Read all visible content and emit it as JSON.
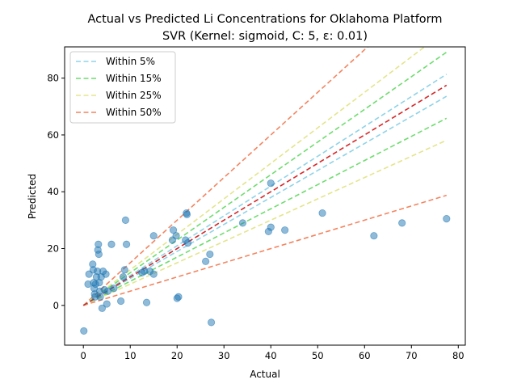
{
  "chart_data": {
    "type": "scatter",
    "title": "Actual vs Predicted Li Concentrations for Oklahoma Platform",
    "subtitle": "SVR (Kernel: sigmoid, C: 5, ε: 0.01)",
    "xlabel": "Actual",
    "ylabel": "Predicted",
    "xlim": [
      -4,
      81.5
    ],
    "ylim": [
      -14,
      91
    ],
    "xticks": [
      0,
      10,
      20,
      30,
      40,
      50,
      60,
      70,
      80
    ],
    "yticks": [
      0,
      20,
      40,
      60,
      80
    ],
    "xtick_labels": [
      "0",
      "10",
      "20",
      "30",
      "40",
      "50",
      "60",
      "70",
      "80"
    ],
    "ytick_labels": [
      "0",
      "20",
      "40",
      "60",
      "80"
    ],
    "grid": false,
    "legend_position": "top-left",
    "points_color": "#1f77b4",
    "identity_line": {
      "color": "#d62728",
      "x": [
        0,
        77.5
      ]
    },
    "bands": [
      {
        "label": "Within 5%",
        "pct": 0.05,
        "color": "#8fd3e8"
      },
      {
        "label": "Within 15%",
        "pct": 0.15,
        "color": "#6fdc6f"
      },
      {
        "label": "Within 25%",
        "pct": 0.25,
        "color": "#e3e58c"
      },
      {
        "label": "Within 50%",
        "pct": 0.5,
        "color": "#f4845f"
      }
    ],
    "series": [
      {
        "x": [
          0.1,
          1.0,
          1.2,
          2.0,
          2.1,
          2.2,
          2.3,
          2.4,
          2.5,
          2.6,
          2.8,
          3.0,
          3.1,
          3.2,
          3.3,
          3.4,
          3.5,
          3.6,
          3.8,
          4.0,
          4.2,
          4.5,
          4.8,
          5.0,
          5.2,
          6.0,
          6.5,
          8.0,
          8.5,
          8.8,
          9.0,
          9.2,
          12.5,
          13.0,
          13.5,
          14.2,
          15.0,
          15.0,
          19.0,
          19.2,
          19.8,
          20.0,
          20.3,
          21.8,
          22.0,
          22.1,
          22.3,
          26.1,
          27.0,
          27.3,
          34.0,
          39.5,
          40.0,
          40.0,
          43.0,
          51.0,
          62.0,
          68.0,
          77.5
        ],
        "y": [
          -9.0,
          7.5,
          11.0,
          14.5,
          12.5,
          8.0,
          6.0,
          4.0,
          3.0,
          7.5,
          10.0,
          12.0,
          19.5,
          21.5,
          18.0,
          8.0,
          5.0,
          3.0,
          10.0,
          -1.0,
          12.0,
          5.5,
          11.0,
          0.5,
          5.0,
          21.5,
          6.0,
          1.5,
          10.0,
          12.5,
          30.0,
          21.5,
          11.5,
          12.0,
          1.0,
          12.0,
          11.0,
          24.5,
          23.0,
          26.5,
          24.5,
          2.5,
          3.0,
          23.0,
          32.5,
          32.0,
          22.0,
          15.5,
          18.0,
          -6.0,
          29.0,
          26.0,
          27.5,
          43.0,
          26.5,
          32.5,
          24.5,
          29.0,
          30.5
        ]
      }
    ]
  }
}
